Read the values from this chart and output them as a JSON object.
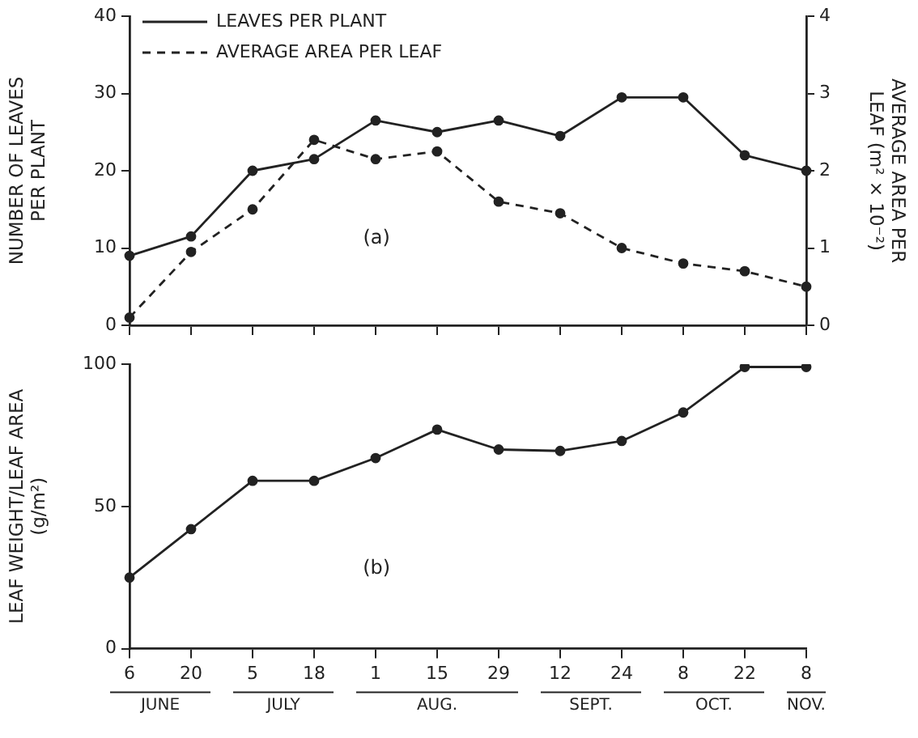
{
  "chart_data": [
    {
      "type": "line",
      "categories": [
        "6",
        "20",
        "5",
        "18",
        "1",
        "15",
        "29",
        "12",
        "24",
        "8",
        "22",
        "8"
      ],
      "ylabel": "NUMBER OF LEAVES\nPER PLANT",
      "y2label": "AVERAGE AREA PER\nLEAF (m² × 10⁻²)",
      "ylim": [
        0,
        40
      ],
      "yticks": [
        0,
        10,
        20,
        30,
        40
      ],
      "y2lim": [
        0,
        4
      ],
      "y2ticks": [
        0,
        1,
        2,
        3,
        4
      ],
      "grid": false,
      "legend": "top left",
      "tick_labels": "y",
      "marker": "circle",
      "annotations": [
        "(a)"
      ],
      "series": [
        {
          "name": "LEAVES PER PLANT",
          "color": "#222222",
          "line_style": "solid",
          "values": [
            9,
            11.5,
            20,
            21.5,
            26.5,
            25,
            26.5,
            24.5,
            29.5,
            29.5,
            22,
            20
          ]
        },
        {
          "name": "AVERAGE AREA PER LEAF",
          "color": "#222222",
          "line_style": "dashed",
          "axis": "y2",
          "values": [
            0.1,
            0.95,
            1.5,
            2.4,
            2.15,
            2.25,
            1.6,
            1.45,
            1.0,
            0.8,
            0.7,
            0.5
          ]
        }
      ]
    },
    {
      "type": "line",
      "categories": [
        "6",
        "20",
        "5",
        "18",
        "1",
        "15",
        "29",
        "12",
        "24",
        "8",
        "22",
        "8"
      ],
      "ylabel": "LEAF WEIGHT/LEAF AREA\n(g/m²)",
      "ylim": [
        0,
        100
      ],
      "yticks": [
        0,
        50,
        100
      ],
      "grid": false,
      "marker": "circle",
      "color": "#222222",
      "values": [
        25,
        42,
        59,
        59,
        67,
        77,
        70,
        69.5,
        73,
        83,
        99,
        99
      ],
      "annotations": [
        "(b)",
        "JUNE",
        "JULY",
        "AUG.",
        "SEPT.",
        "OCT.",
        "NOV."
      ]
    }
  ]
}
